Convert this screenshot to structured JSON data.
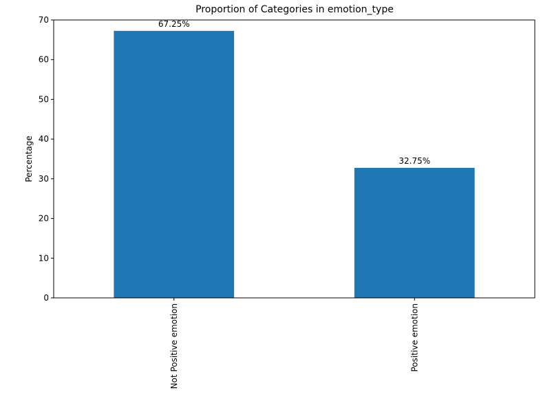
{
  "chart_data": {
    "type": "bar",
    "title": "Proportion of Categories in emotion_type",
    "xlabel": "",
    "ylabel": "Percentage",
    "categories": [
      "Not Positive emotion",
      "Positive emotion"
    ],
    "values": [
      67.25,
      32.75
    ],
    "data_labels": [
      "67.25%",
      "32.75%"
    ],
    "ylim": [
      0,
      70
    ],
    "yticks": [
      0,
      10,
      20,
      30,
      40,
      50,
      60,
      70
    ],
    "grid": false,
    "legend": "none",
    "bar_color": "#1f77b4"
  }
}
